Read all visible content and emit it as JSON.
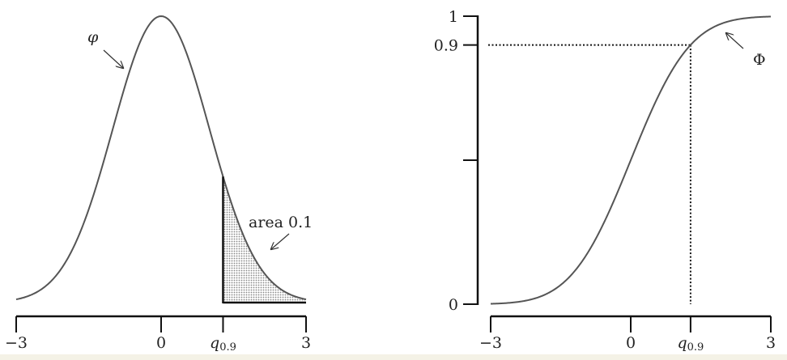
{
  "chart_data": [
    {
      "type": "line",
      "function": "standard normal density",
      "curve_label": "φ",
      "x_range": [
        -3,
        3
      ],
      "x_ticks": [
        -3,
        0,
        "q0.9",
        3
      ],
      "x_tick_labels": [
        "−3",
        "0",
        "q",
        "3"
      ],
      "quantile_subscript": "0.9",
      "quantile_value": 1.2816,
      "shaded_region": {
        "from": "q0.9",
        "to": 3,
        "label": "area 0.1"
      },
      "y_axis": false
    },
    {
      "type": "line",
      "function": "standard normal CDF",
      "curve_label": "Φ",
      "x_range": [
        -3,
        3
      ],
      "y_range": [
        0,
        1
      ],
      "x_ticks": [
        -3,
        0,
        "q0.9",
        3
      ],
      "x_tick_labels": [
        "−3",
        "0",
        "q",
        "3"
      ],
      "quantile_subscript": "0.9",
      "quantile_value": 1.2816,
      "y_ticks": [
        0,
        0.5,
        0.9,
        1
      ],
      "y_tick_labels": [
        "0",
        "",
        "0.9",
        "1"
      ],
      "reference_level": 0.9
    }
  ],
  "colors": {
    "curve": "#555555",
    "axis": "#111111",
    "shading": "#bbbbbb"
  }
}
